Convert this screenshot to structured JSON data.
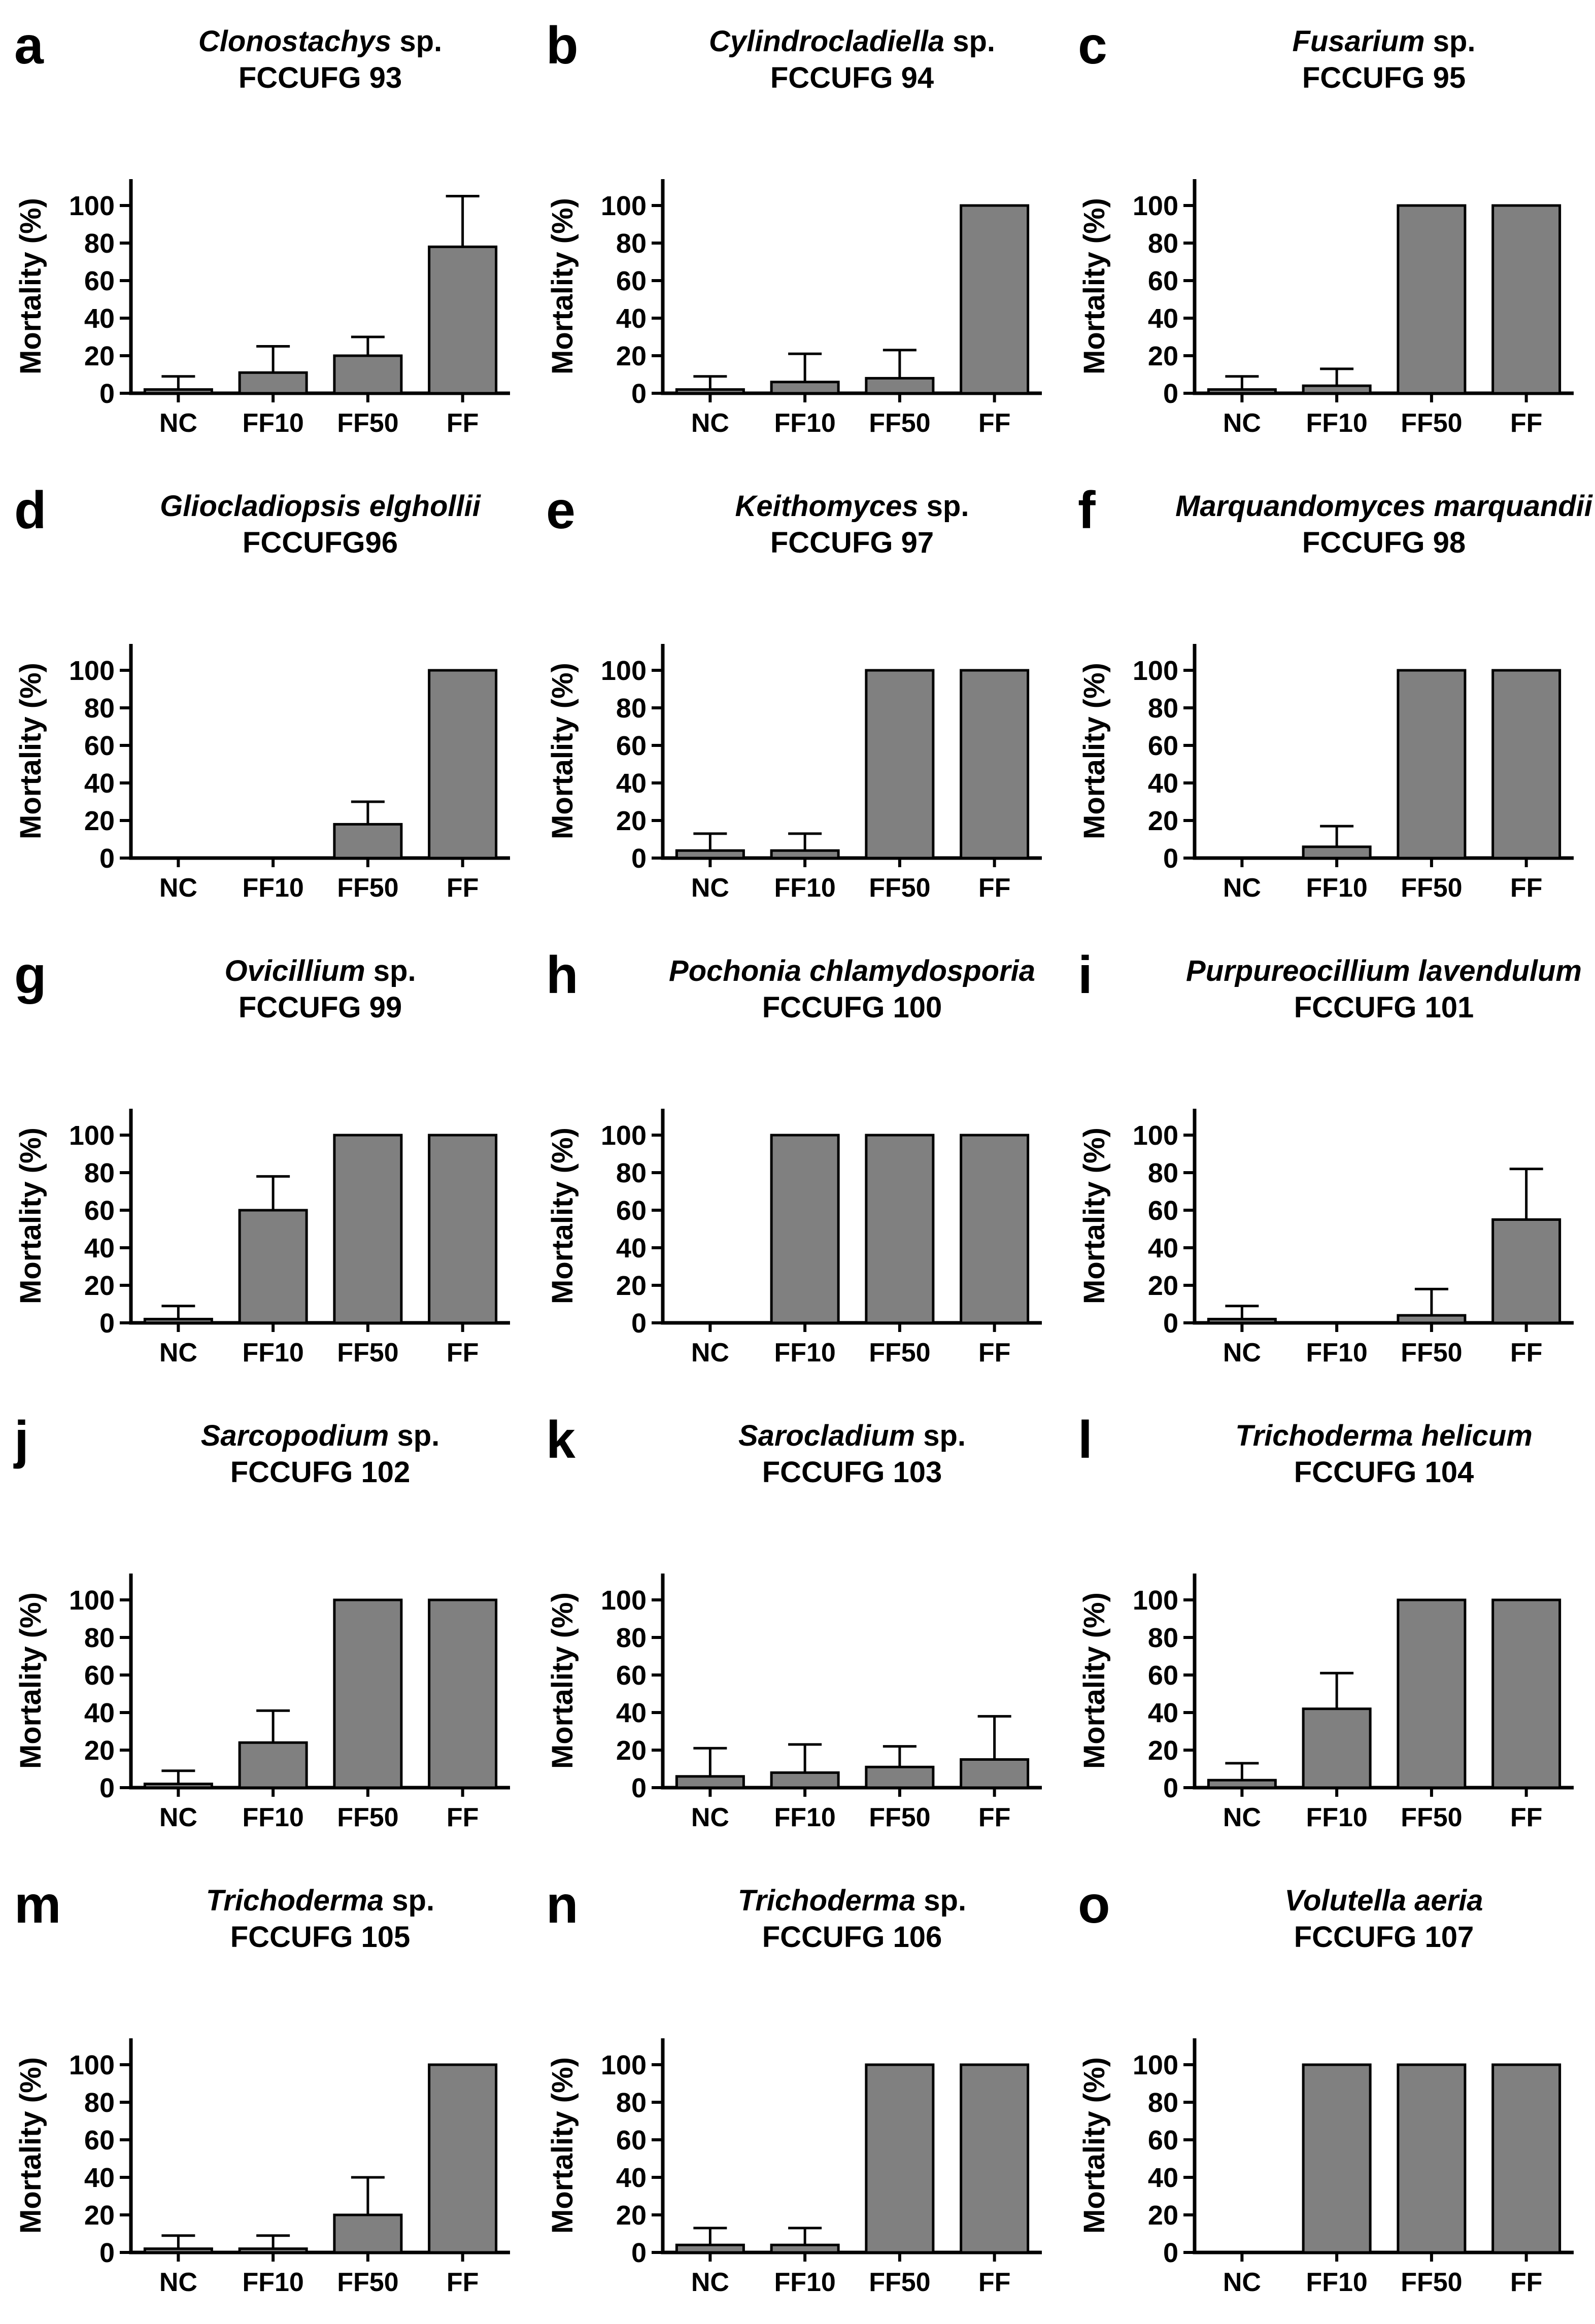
{
  "figure": {
    "ylabel": "Mortality (%)",
    "categories": [
      "NC",
      "FF10",
      "FF50",
      "FF"
    ],
    "yticks": [
      0,
      20,
      40,
      60,
      80,
      100
    ],
    "ylim": [
      0,
      114
    ],
    "bar_color": "#808080",
    "axis_color": "#000000",
    "grid": "off",
    "error_bars": "upper-sd-only",
    "legend": "none"
  },
  "chart_data": [
    {
      "type": "bar",
      "panel_letter": "a",
      "species_italic": "Clonostachys",
      "species_roman": " sp.",
      "strain": "FCCUFG 93",
      "title": "Clonostachys sp. FCCUFG 93",
      "categories": [
        "NC",
        "FF10",
        "FF50",
        "FF"
      ],
      "values": [
        2,
        11,
        20,
        78
      ],
      "error_plus": [
        7,
        14,
        10,
        27
      ],
      "xlabel": "",
      "ylabel": "Mortality (%)"
    },
    {
      "type": "bar",
      "panel_letter": "b",
      "species_italic": "Cylindrocladiella",
      "species_roman": " sp.",
      "strain": "FCCUFG 94",
      "title": "Cylindrocladiella sp. FCCUFG 94",
      "categories": [
        "NC",
        "FF10",
        "FF50",
        "FF"
      ],
      "values": [
        2,
        6,
        8,
        100
      ],
      "error_plus": [
        7,
        15,
        15,
        0
      ],
      "xlabel": "",
      "ylabel": "Mortality (%)"
    },
    {
      "type": "bar",
      "panel_letter": "c",
      "species_italic": "Fusarium",
      "species_roman": " sp.",
      "strain": "FCCUFG 95",
      "title": "Fusarium sp. FCCUFG 95",
      "categories": [
        "NC",
        "FF10",
        "FF50",
        "FF"
      ],
      "values": [
        2,
        4,
        100,
        100
      ],
      "error_plus": [
        7,
        9,
        0,
        0
      ],
      "xlabel": "",
      "ylabel": "Mortality (%)"
    },
    {
      "type": "bar",
      "panel_letter": "d",
      "species_italic": "Gliocladiopsis elghollii",
      "species_roman": "",
      "strain": "FCCUFG96",
      "title": "Gliocladiopsis elghollii FCCUFG96",
      "categories": [
        "NC",
        "FF10",
        "FF50",
        "FF"
      ],
      "values": [
        0,
        0,
        18,
        100
      ],
      "error_plus": [
        0,
        0,
        12,
        0
      ],
      "xlabel": "",
      "ylabel": "Mortality (%)"
    },
    {
      "type": "bar",
      "panel_letter": "e",
      "species_italic": "Keithomyces",
      "species_roman": " sp.",
      "strain": "FCCUFG 97",
      "title": "Keithomyces sp. FCCUFG 97",
      "categories": [
        "NC",
        "FF10",
        "FF50",
        "FF"
      ],
      "values": [
        4,
        4,
        100,
        100
      ],
      "error_plus": [
        9,
        9,
        0,
        0
      ],
      "xlabel": "",
      "ylabel": "Mortality (%)"
    },
    {
      "type": "bar",
      "panel_letter": "f",
      "species_italic": "Marquandomyces marquandii",
      "species_roman": "",
      "strain": "FCCUFG 98",
      "title": "Marquandomyces marquandii FCCUFG 98",
      "categories": [
        "NC",
        "FF10",
        "FF50",
        "FF"
      ],
      "values": [
        0,
        6,
        100,
        100
      ],
      "error_plus": [
        0,
        11,
        0,
        0
      ],
      "xlabel": "",
      "ylabel": "Mortality (%)"
    },
    {
      "type": "bar",
      "panel_letter": "g",
      "species_italic": "Ovicillium",
      "species_roman": " sp.",
      "strain": "FCCUFG 99",
      "title": "Ovicillium sp. FCCUFG 99",
      "categories": [
        "NC",
        "FF10",
        "FF50",
        "FF"
      ],
      "values": [
        2,
        60,
        100,
        100
      ],
      "error_plus": [
        7,
        18,
        0,
        0
      ],
      "xlabel": "",
      "ylabel": "Mortality (%)"
    },
    {
      "type": "bar",
      "panel_letter": "h",
      "species_italic": "Pochonia chlamydosporia",
      "species_roman": "",
      "strain": "FCCUFG 100",
      "title": "Pochonia chlamydosporia FCCUFG 100",
      "categories": [
        "NC",
        "FF10",
        "FF50",
        "FF"
      ],
      "values": [
        0,
        100,
        100,
        100
      ],
      "error_plus": [
        0,
        0,
        0,
        0
      ],
      "xlabel": "",
      "ylabel": "Mortality (%)"
    },
    {
      "type": "bar",
      "panel_letter": "i",
      "species_italic": "Purpureocillium lavendulum",
      "species_roman": "",
      "strain": "FCCUFG 101",
      "title": "Purpureocillium lavendulum FCCUFG 101",
      "categories": [
        "NC",
        "FF10",
        "FF50",
        "FF"
      ],
      "values": [
        2,
        0,
        4,
        55
      ],
      "error_plus": [
        7,
        0,
        14,
        27
      ],
      "xlabel": "",
      "ylabel": "Mortality (%)"
    },
    {
      "type": "bar",
      "panel_letter": "j",
      "species_italic": "Sarcopodium",
      "species_roman": " sp.",
      "strain": "FCCUFG 102",
      "title": "Sarcopodium sp. FCCUFG 102",
      "categories": [
        "NC",
        "FF10",
        "FF50",
        "FF"
      ],
      "values": [
        2,
        24,
        100,
        100
      ],
      "error_plus": [
        7,
        17,
        0,
        0
      ],
      "xlabel": "",
      "ylabel": "Mortality (%)"
    },
    {
      "type": "bar",
      "panel_letter": "k",
      "species_italic": "Sarocladium",
      "species_roman": " sp.",
      "strain": "FCCUFG 103",
      "title": "Sarocladium sp. FCCUFG 103",
      "categories": [
        "NC",
        "FF10",
        "FF50",
        "FF"
      ],
      "values": [
        6,
        8,
        11,
        15
      ],
      "error_plus": [
        15,
        15,
        11,
        23
      ],
      "xlabel": "",
      "ylabel": "Mortality (%)"
    },
    {
      "type": "bar",
      "panel_letter": "l",
      "species_italic": "Trichoderma helicum",
      "species_roman": "",
      "strain": "FCCUFG 104",
      "title": "Trichoderma helicum FCCUFG 104",
      "categories": [
        "NC",
        "FF10",
        "FF50",
        "FF"
      ],
      "values": [
        4,
        42,
        100,
        100
      ],
      "error_plus": [
        9,
        19,
        0,
        0
      ],
      "xlabel": "",
      "ylabel": "Mortality (%)"
    },
    {
      "type": "bar",
      "panel_letter": "m",
      "species_italic": "Trichoderma",
      "species_roman": " sp.",
      "strain": "FCCUFG 105",
      "title": "Trichoderma sp. FCCUFG 105",
      "categories": [
        "NC",
        "FF10",
        "FF50",
        "FF"
      ],
      "values": [
        2,
        2,
        20,
        100
      ],
      "error_plus": [
        7,
        7,
        20,
        0
      ],
      "xlabel": "",
      "ylabel": "Mortality (%)"
    },
    {
      "type": "bar",
      "panel_letter": "n",
      "species_italic": "Trichoderma",
      "species_roman": " sp.",
      "strain": "FCCUFG 106",
      "title": "Trichoderma sp. FCCUFG 106",
      "categories": [
        "NC",
        "FF10",
        "FF50",
        "FF"
      ],
      "values": [
        4,
        4,
        100,
        100
      ],
      "error_plus": [
        9,
        9,
        0,
        0
      ],
      "xlabel": "",
      "ylabel": "Mortality (%)"
    },
    {
      "type": "bar",
      "panel_letter": "o",
      "species_italic": "Volutella aeria",
      "species_roman": "",
      "strain": "FCCUFG 107",
      "title": "Volutella aeria FCCUFG 107",
      "categories": [
        "NC",
        "FF10",
        "FF50",
        "FF"
      ],
      "values": [
        0,
        100,
        100,
        100
      ],
      "error_plus": [
        0,
        0,
        0,
        0
      ],
      "xlabel": "",
      "ylabel": "Mortality (%)"
    }
  ]
}
